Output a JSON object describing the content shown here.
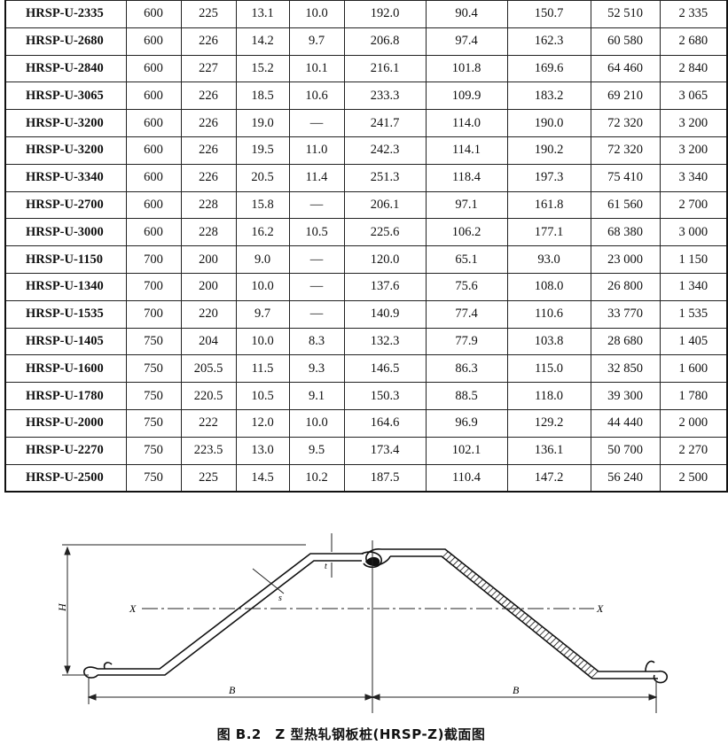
{
  "table": {
    "rows": [
      [
        "HRSP-U-2335",
        "600",
        "225",
        "13.1",
        "10.0",
        "192.0",
        "90.4",
        "150.7",
        "52 510",
        "2 335"
      ],
      [
        "HRSP-U-2680",
        "600",
        "226",
        "14.2",
        "9.7",
        "206.8",
        "97.4",
        "162.3",
        "60 580",
        "2 680"
      ],
      [
        "HRSP-U-2840",
        "600",
        "227",
        "15.2",
        "10.1",
        "216.1",
        "101.8",
        "169.6",
        "64 460",
        "2 840"
      ],
      [
        "HRSP-U-3065",
        "600",
        "226",
        "18.5",
        "10.6",
        "233.3",
        "109.9",
        "183.2",
        "69 210",
        "3 065"
      ],
      [
        "HRSP-U-3200",
        "600",
        "226",
        "19.0",
        "—",
        "241.7",
        "114.0",
        "190.0",
        "72 320",
        "3 200"
      ],
      [
        "HRSP-U-3200",
        "600",
        "226",
        "19.5",
        "11.0",
        "242.3",
        "114.1",
        "190.2",
        "72 320",
        "3 200"
      ],
      [
        "HRSP-U-3340",
        "600",
        "226",
        "20.5",
        "11.4",
        "251.3",
        "118.4",
        "197.3",
        "75 410",
        "3 340"
      ],
      [
        "HRSP-U-2700",
        "600",
        "228",
        "15.8",
        "—",
        "206.1",
        "97.1",
        "161.8",
        "61 560",
        "2 700"
      ],
      [
        "HRSP-U-3000",
        "600",
        "228",
        "16.2",
        "10.5",
        "225.6",
        "106.2",
        "177.1",
        "68 380",
        "3 000"
      ],
      [
        "HRSP-U-1150",
        "700",
        "200",
        "9.0",
        "—",
        "120.0",
        "65.1",
        "93.0",
        "23 000",
        "1 150"
      ],
      [
        "HRSP-U-1340",
        "700",
        "200",
        "10.0",
        "—",
        "137.6",
        "75.6",
        "108.0",
        "26 800",
        "1 340"
      ],
      [
        "HRSP-U-1535",
        "700",
        "220",
        "9.7",
        "—",
        "140.9",
        "77.4",
        "110.6",
        "33 770",
        "1 535"
      ],
      [
        "HRSP-U-1405",
        "750",
        "204",
        "10.0",
        "8.3",
        "132.3",
        "77.9",
        "103.8",
        "28 680",
        "1 405"
      ],
      [
        "HRSP-U-1600",
        "750",
        "205.5",
        "11.5",
        "9.3",
        "146.5",
        "86.3",
        "115.0",
        "32 850",
        "1 600"
      ],
      [
        "HRSP-U-1780",
        "750",
        "220.5",
        "10.5",
        "9.1",
        "150.3",
        "88.5",
        "118.0",
        "39 300",
        "1 780"
      ],
      [
        "HRSP-U-2000",
        "750",
        "222",
        "12.0",
        "10.0",
        "164.6",
        "96.9",
        "129.2",
        "44 440",
        "2 000"
      ],
      [
        "HRSP-U-2270",
        "750",
        "223.5",
        "13.0",
        "9.5",
        "173.4",
        "102.1",
        "136.1",
        "50 700",
        "2 270"
      ],
      [
        "HRSP-U-2500",
        "750",
        "225",
        "14.5",
        "10.2",
        "187.5",
        "110.4",
        "147.2",
        "56 240",
        "2 500"
      ]
    ]
  },
  "figure": {
    "labels": {
      "H": "H",
      "t": "t",
      "s": "s",
      "x_left": "X",
      "x_right": "X",
      "b_left": "B",
      "b_right": "B"
    },
    "caption": "图 B.2　Z 型热轧钢板桩(HRSP-Z)截面图"
  }
}
